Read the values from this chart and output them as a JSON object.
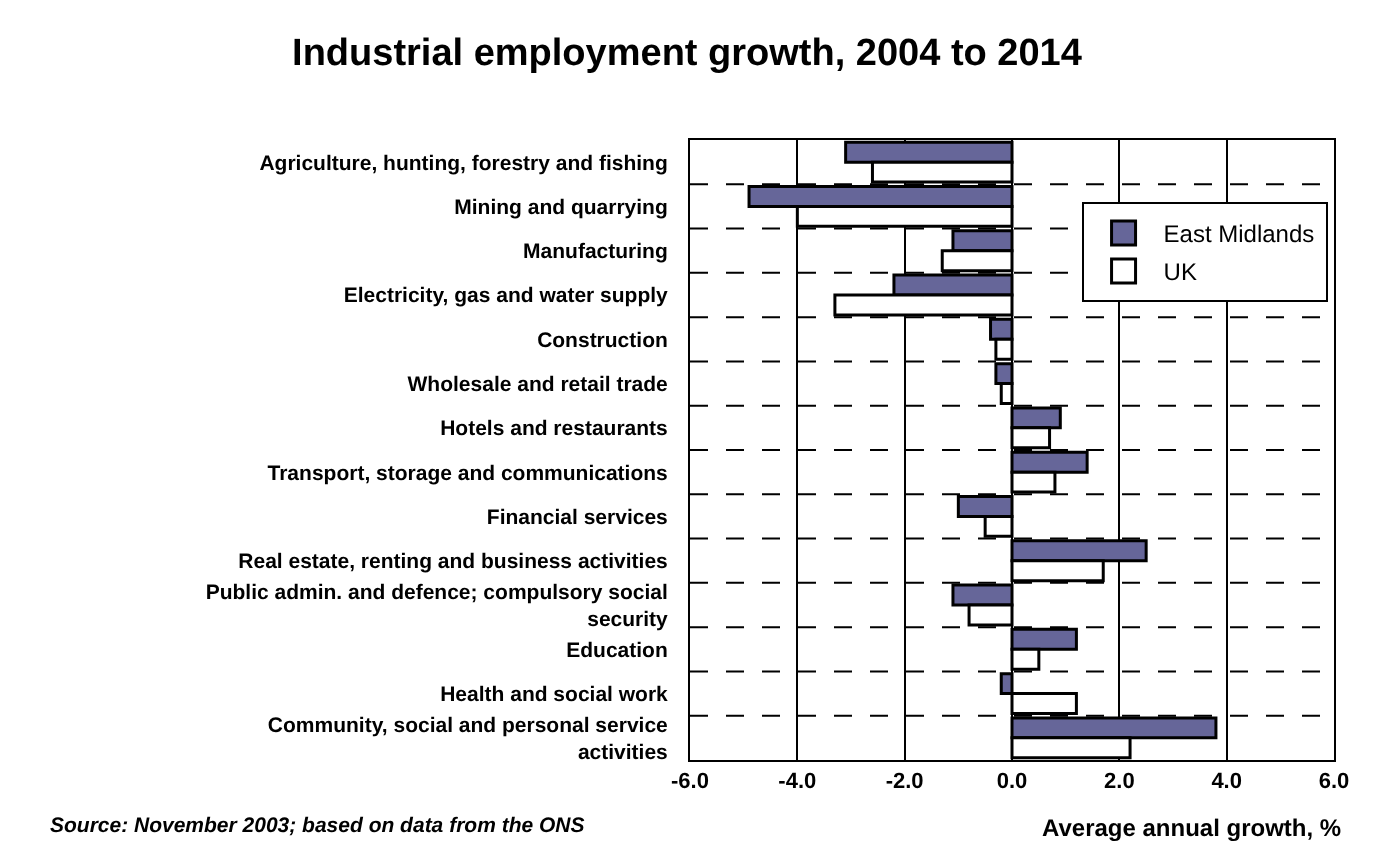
{
  "chart_data": {
    "type": "bar",
    "orientation": "horizontal",
    "title": "Industrial employment growth, 2004 to 2014",
    "xlabel": "Average annual growth, %",
    "categories": [
      "Agriculture, hunting, forestry and fishing",
      "Mining and quarrying",
      "Manufacturing",
      "Electricity, gas and water supply",
      "Construction",
      "Wholesale and retail trade",
      "Hotels and restaurants",
      "Transport, storage and communications",
      "Financial services",
      "Real estate, renting and business activities",
      "Public admin. and defence; compulsory social security",
      "Education",
      "Health and social work",
      "Community, social and personal service activities"
    ],
    "series": [
      {
        "name": "East Midlands",
        "color": "#666699",
        "values": [
          -3.1,
          -4.9,
          -1.1,
          -2.2,
          -0.4,
          -0.3,
          0.9,
          1.4,
          -1.0,
          2.5,
          -1.1,
          1.2,
          -0.2,
          3.8
        ]
      },
      {
        "name": "UK",
        "color": "#ffffff",
        "values": [
          -2.6,
          -4.0,
          -1.3,
          -3.3,
          -0.3,
          -0.2,
          0.7,
          0.8,
          -0.5,
          1.7,
          -0.8,
          0.5,
          1.2,
          2.2
        ]
      }
    ],
    "xlim": [
      -6,
      6
    ],
    "xticks": [
      {
        "value": -6,
        "label": "-6.0"
      },
      {
        "value": -4,
        "label": "-4.0"
      },
      {
        "value": -2,
        "label": "-2.0"
      },
      {
        "value": 0,
        "label": "0.0"
      },
      {
        "value": 2,
        "label": "2.0"
      },
      {
        "value": 4,
        "label": "4.0"
      },
      {
        "value": 6,
        "label": "6.0"
      }
    ],
    "grid": true,
    "legend": "top right",
    "annotations": [
      "Source: November 2003; based on data from the ONS"
    ]
  }
}
